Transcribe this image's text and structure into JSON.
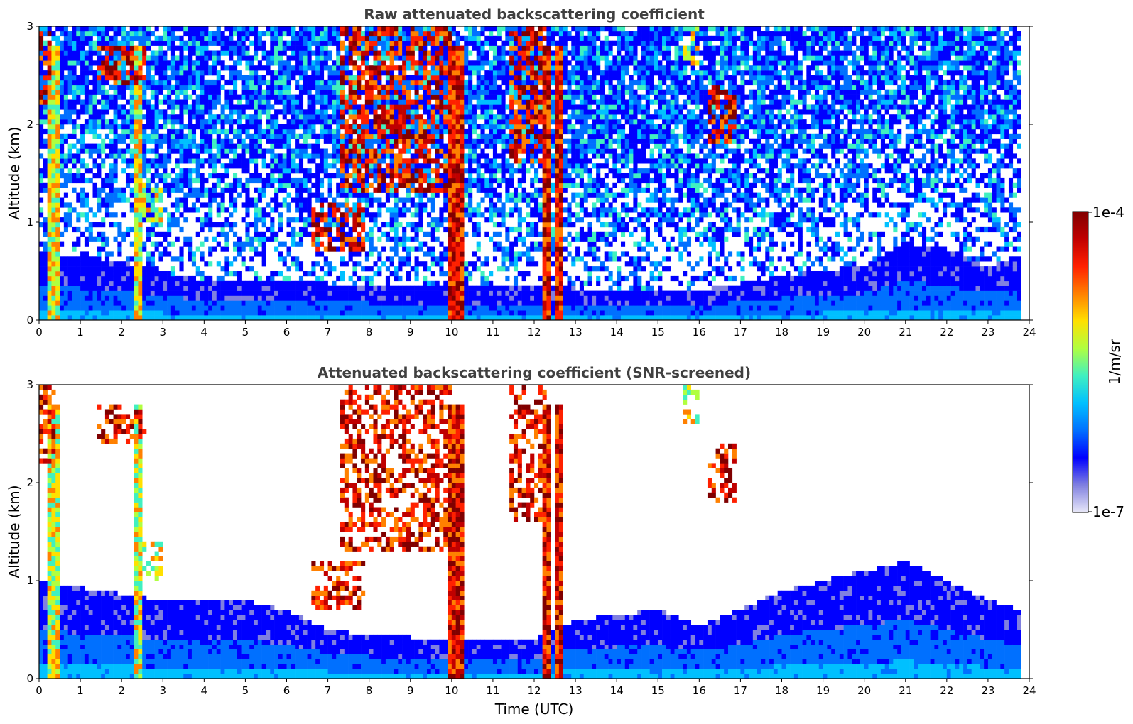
{
  "chart_data": [
    {
      "type": "heatmap",
      "title": "Raw attenuated backscattering coefficient",
      "xlabel": "",
      "ylabel": "Altitude (km)",
      "xlim": [
        0,
        24
      ],
      "ylim": [
        0,
        3
      ],
      "x_ticks": [
        "0",
        "1",
        "2",
        "3",
        "4",
        "5",
        "6",
        "7",
        "8",
        "9",
        "10",
        "11",
        "12",
        "13",
        "14",
        "15",
        "16",
        "17",
        "18",
        "19",
        "20",
        "21",
        "22",
        "23",
        "24"
      ],
      "y_ticks": [
        "0",
        "1",
        "2",
        "3"
      ],
      "data_end_time": 23.8,
      "boundary_layer_top_km": [
        [
          0,
          0.7
        ],
        [
          2,
          0.6
        ],
        [
          4,
          0.4
        ],
        [
          6,
          0.4
        ],
        [
          8,
          0.35
        ],
        [
          10,
          0.35
        ],
        [
          12,
          0.35
        ],
        [
          14,
          0.3
        ],
        [
          16,
          0.3
        ],
        [
          18,
          0.45
        ],
        [
          20,
          0.55
        ],
        [
          21,
          0.8
        ],
        [
          22,
          0.7
        ],
        [
          23,
          0.55
        ],
        [
          23.8,
          0.65
        ]
      ],
      "cloud_features": [
        {
          "x0": 0.0,
          "x1": 0.3,
          "y0": 2.2,
          "y1": 3.0,
          "level": "high"
        },
        {
          "x0": 1.4,
          "x1": 2.6,
          "y0": 2.4,
          "y1": 2.8,
          "level": "high"
        },
        {
          "x0": 2.5,
          "x1": 3.0,
          "y0": 1.0,
          "y1": 1.4,
          "level": "mid"
        },
        {
          "x0": 6.6,
          "x1": 7.9,
          "y0": 0.7,
          "y1": 1.2,
          "level": "high"
        },
        {
          "x0": 7.3,
          "x1": 10.0,
          "y0": 1.3,
          "y1": 3.0,
          "level": "high"
        },
        {
          "x0": 11.4,
          "x1": 12.3,
          "y0": 1.6,
          "y1": 3.0,
          "level": "high"
        },
        {
          "x0": 15.6,
          "x1": 16.0,
          "y0": 2.6,
          "y1": 3.0,
          "level": "mid"
        },
        {
          "x0": 16.2,
          "x1": 16.9,
          "y0": 1.8,
          "y1": 2.4,
          "level": "high"
        }
      ],
      "precipitation_columns": [
        {
          "x0": 0.25,
          "x1": 0.5,
          "level": "mid"
        },
        {
          "x0": 2.35,
          "x1": 2.5,
          "level": "mid"
        },
        {
          "x0": 9.9,
          "x1": 10.3,
          "level": "high"
        },
        {
          "x0": 12.2,
          "x1": 12.35,
          "level": "high"
        },
        {
          "x0": 12.5,
          "x1": 12.7,
          "level": "high"
        }
      ],
      "noise": "high"
    },
    {
      "type": "heatmap",
      "title": "Attenuated backscattering coefficient (SNR-screened)",
      "xlabel": "Time (UTC)",
      "ylabel": "Altitude (km)",
      "xlim": [
        0,
        24
      ],
      "ylim": [
        0,
        3
      ],
      "x_ticks": [
        "0",
        "1",
        "2",
        "3",
        "4",
        "5",
        "6",
        "7",
        "8",
        "9",
        "10",
        "11",
        "12",
        "13",
        "14",
        "15",
        "16",
        "17",
        "18",
        "19",
        "20",
        "21",
        "22",
        "23",
        "24"
      ],
      "y_ticks": [
        "0",
        "1",
        "2",
        "3"
      ],
      "data_end_time": 23.8,
      "boundary_layer_top_km": [
        [
          0,
          1.0
        ],
        [
          3,
          0.8
        ],
        [
          5,
          0.8
        ],
        [
          6,
          0.7
        ],
        [
          7,
          0.5
        ],
        [
          8,
          0.45
        ],
        [
          10,
          0.4
        ],
        [
          12,
          0.4
        ],
        [
          13,
          0.6
        ],
        [
          15,
          0.7
        ],
        [
          16,
          0.55
        ],
        [
          17,
          0.7
        ],
        [
          18,
          0.9
        ],
        [
          20,
          1.1
        ],
        [
          21,
          1.2
        ],
        [
          22,
          1.0
        ],
        [
          23,
          0.8
        ],
        [
          23.8,
          0.7
        ]
      ],
      "cloud_features": [
        {
          "x0": 0.0,
          "x1": 0.4,
          "y0": 2.2,
          "y1": 3.0,
          "level": "high"
        },
        {
          "x0": 1.4,
          "x1": 2.6,
          "y0": 2.4,
          "y1": 2.8,
          "level": "high"
        },
        {
          "x0": 2.5,
          "x1": 3.0,
          "y0": 1.0,
          "y1": 1.4,
          "level": "mid"
        },
        {
          "x0": 6.6,
          "x1": 7.9,
          "y0": 0.7,
          "y1": 1.2,
          "level": "high"
        },
        {
          "x0": 7.3,
          "x1": 10.0,
          "y0": 1.3,
          "y1": 3.0,
          "level": "high"
        },
        {
          "x0": 11.4,
          "x1": 12.3,
          "y0": 1.6,
          "y1": 3.0,
          "level": "high"
        },
        {
          "x0": 15.6,
          "x1": 16.0,
          "y0": 2.6,
          "y1": 3.0,
          "level": "mid"
        },
        {
          "x0": 16.2,
          "x1": 16.9,
          "y0": 1.8,
          "y1": 2.4,
          "level": "high"
        }
      ],
      "precipitation_columns": [
        {
          "x0": 0.25,
          "x1": 0.5,
          "level": "mid"
        },
        {
          "x0": 2.35,
          "x1": 2.5,
          "level": "mid"
        },
        {
          "x0": 9.9,
          "x1": 10.3,
          "level": "high"
        },
        {
          "x0": 12.2,
          "x1": 12.35,
          "level": "high"
        },
        {
          "x0": 12.5,
          "x1": 12.7,
          "level": "high"
        }
      ],
      "noise": "screened"
    }
  ],
  "colorbar": {
    "label": "1/m/sr",
    "max_label": "1e-4",
    "min_label": "1e-7",
    "colormap": [
      "#e8e8f8",
      "#8080e0",
      "#0000ff",
      "#0070ff",
      "#00c0ff",
      "#40f0c0",
      "#b0ff40",
      "#ffe000",
      "#ff8000",
      "#ff2000",
      "#c00000",
      "#800000"
    ]
  }
}
